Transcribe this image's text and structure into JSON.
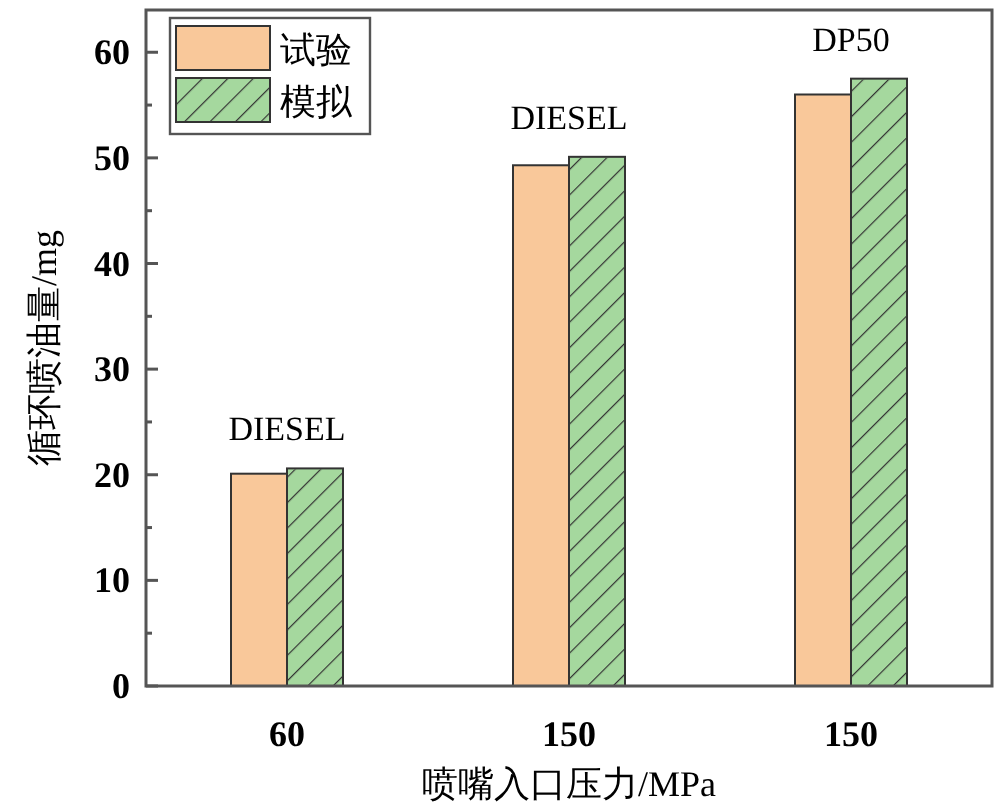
{
  "chart_data": {
    "type": "bar",
    "xlabel": "喷嘴入口压力/MPa",
    "ylabel": "循环喷油量/mg",
    "categories": [
      "60",
      "150",
      "150"
    ],
    "series": [
      {
        "name": "试验",
        "color": "#f9c89a",
        "values": [
          20.1,
          49.3,
          56.0
        ]
      },
      {
        "name": "模拟",
        "color": "#a5d89e",
        "values": [
          20.6,
          50.1,
          57.5
        ]
      }
    ],
    "ylim": [
      0,
      64
    ],
    "yticks": [
      0,
      10,
      20,
      30,
      40,
      50,
      60
    ],
    "grid": false,
    "legend": "top left",
    "annotations": [
      {
        "text": "DIESEL",
        "y": 20.6
      },
      {
        "text": "DIESEL",
        "y": 50.1
      },
      {
        "text": "DP50",
        "y": 57.5
      }
    ]
  }
}
